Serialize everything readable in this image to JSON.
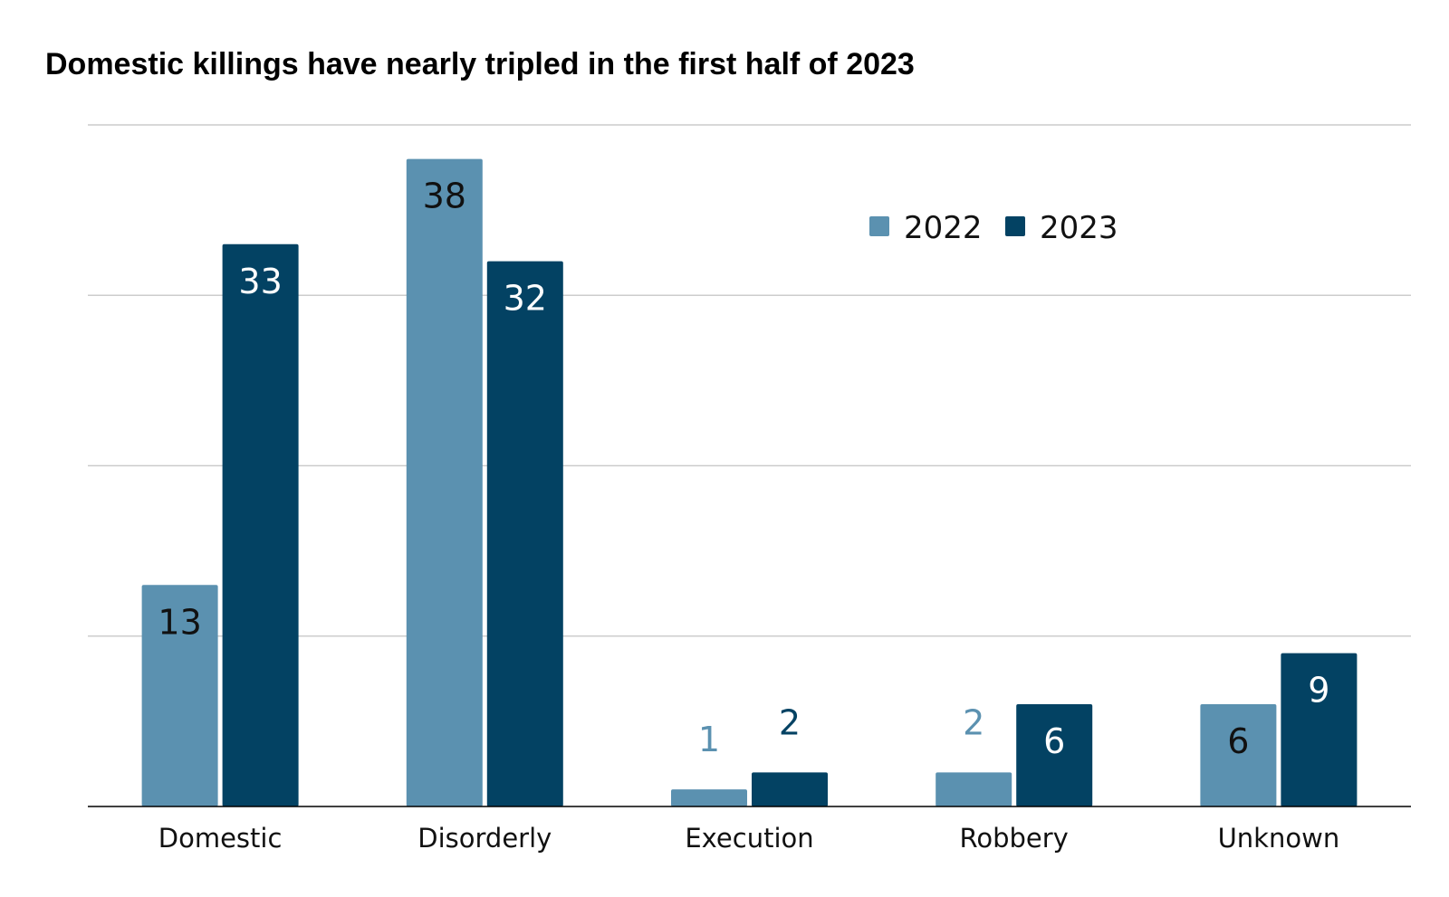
{
  "colors": {
    "s2022": "#5b91b0",
    "s2023": "#034263",
    "grid": "#cccccc",
    "axis": "#000000"
  },
  "chart_data": {
    "type": "bar",
    "title": "Domestic killings have nearly tripled in the first half of 2023",
    "xlabel": "",
    "ylabel": "",
    "ylim": [
      0,
      40
    ],
    "grid": true,
    "legend": "top-right",
    "categories": [
      "Domestic",
      "Disorderly",
      "Execution",
      "Robbery",
      "Unknown"
    ],
    "series": [
      {
        "name": "2022",
        "values": [
          13,
          38,
          1,
          2,
          6
        ]
      },
      {
        "name": "2023",
        "values": [
          33,
          32,
          2,
          6,
          9
        ]
      }
    ]
  }
}
